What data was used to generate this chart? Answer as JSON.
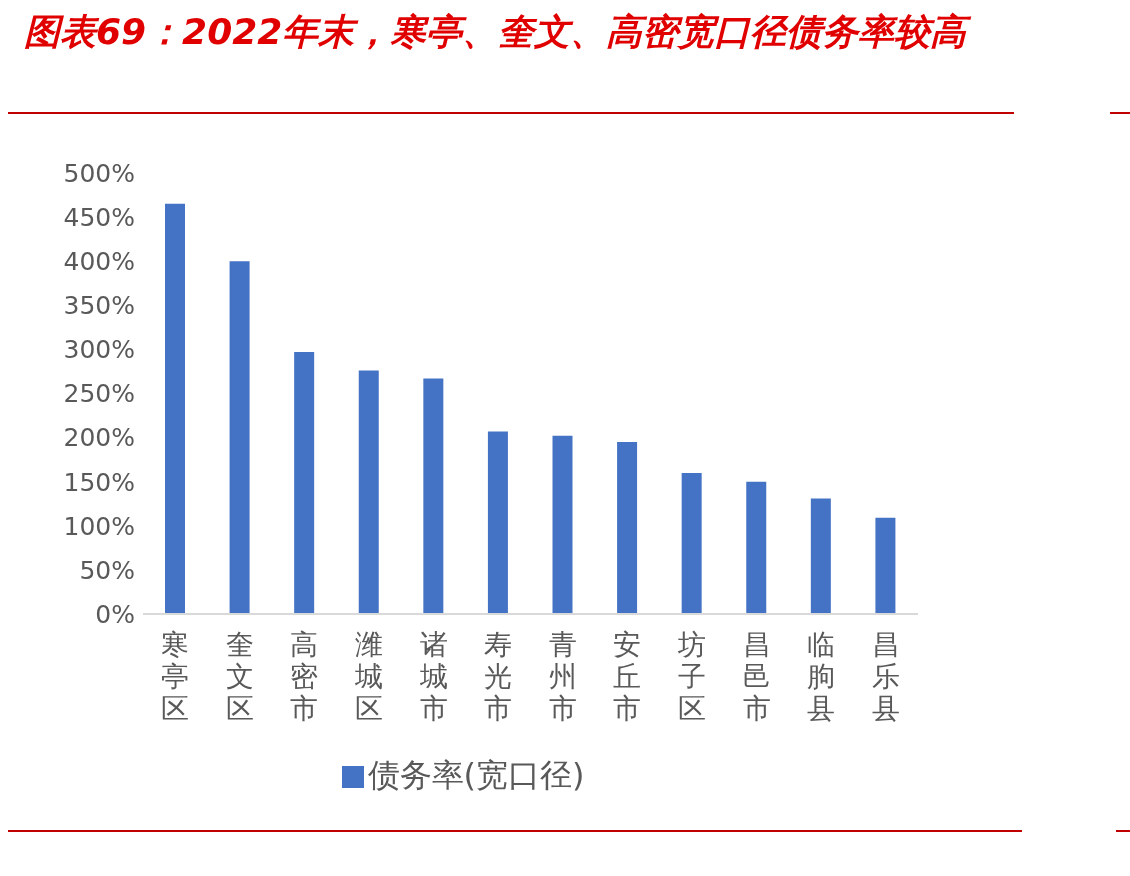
{
  "chart_data": {
    "type": "bar",
    "title": "图表69：2022年末，寒亭、奎文、高密宽口径债务率较高",
    "categories": [
      "寒亭区",
      "奎文区",
      "高密市",
      "潍城区",
      "诸城市",
      "寿光市",
      "青州市",
      "安丘市",
      "坊子区",
      "昌邑市",
      "临朐县",
      "昌乐县"
    ],
    "series": [
      {
        "name": "债务率(宽口径)",
        "color": "#4472c4",
        "values": [
          465,
          400,
          297,
          276,
          267,
          207,
          202,
          195,
          160,
          150,
          131,
          109
        ]
      }
    ],
    "ylim": [
      0,
      500
    ],
    "yticks": [
      {
        "value": 0,
        "label": "0%"
      },
      {
        "value": 50,
        "label": "50%"
      },
      {
        "value": 100,
        "label": "100%"
      },
      {
        "value": 150,
        "label": "150%"
      },
      {
        "value": 200,
        "label": "200%"
      },
      {
        "value": 250,
        "label": "250%"
      },
      {
        "value": 300,
        "label": "300%"
      },
      {
        "value": 350,
        "label": "350%"
      },
      {
        "value": 400,
        "label": "400%"
      },
      {
        "value": 450,
        "label": "450%"
      },
      {
        "value": 500,
        "label": "500%"
      }
    ],
    "grid": false,
    "legend": "bottom"
  }
}
